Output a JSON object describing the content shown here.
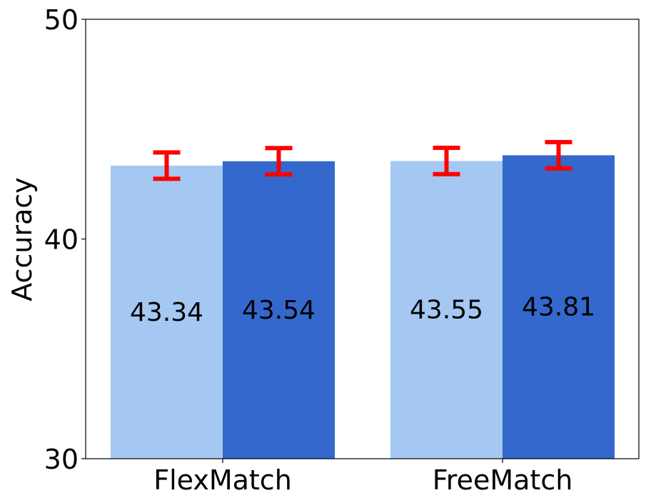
{
  "chart_data": {
    "type": "bar",
    "title": "",
    "xlabel": "",
    "ylabel": "Accuracy",
    "ylim": [
      30,
      50
    ],
    "yticks": [
      30,
      40,
      50
    ],
    "categories": [
      "FlexMatch",
      "FreeMatch"
    ],
    "series": [
      {
        "values": [
          43.34,
          43.55
        ],
        "errors": [
          0.6,
          0.6
        ],
        "labels": [
          "43.34",
          "43.55"
        ]
      },
      {
        "values": [
          43.54,
          43.81
        ],
        "errors": [
          0.6,
          0.6
        ],
        "labels": [
          "43.54",
          "43.81"
        ]
      }
    ],
    "grid": false,
    "legend": "none",
    "colors": {
      "series": [
        "#a5c8f2",
        "#3468cc"
      ],
      "error_bar": "#ff0000",
      "axis": "#000000"
    }
  }
}
